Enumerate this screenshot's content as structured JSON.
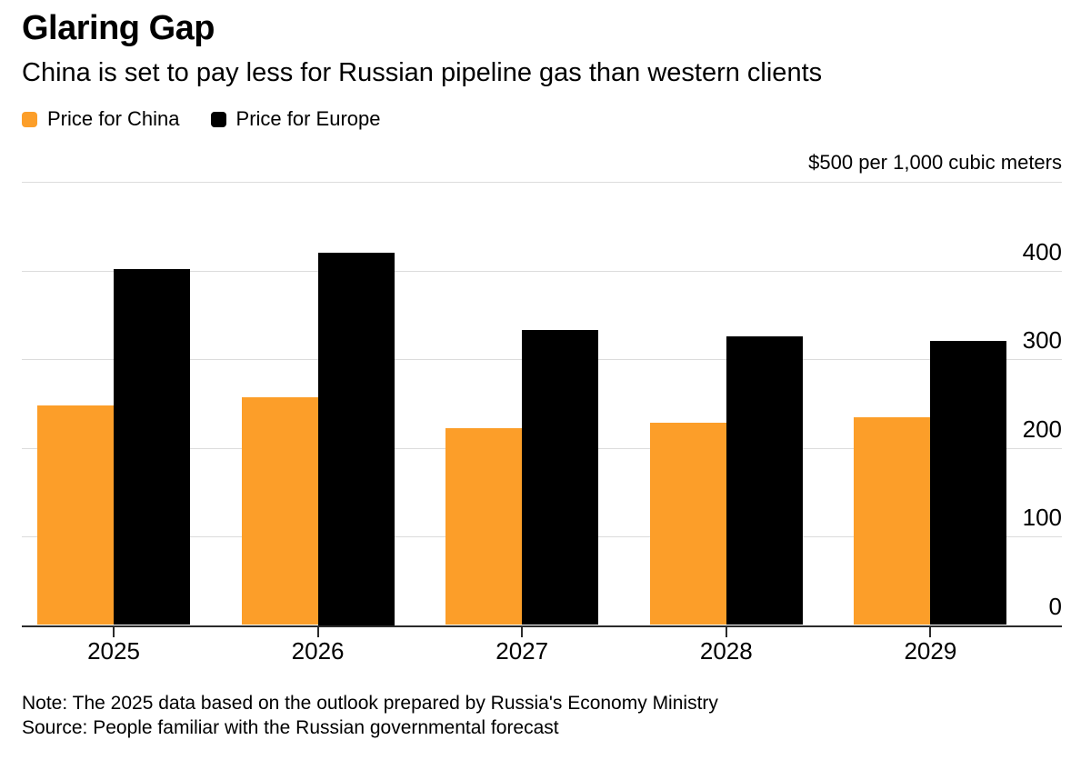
{
  "header": {
    "title": "Glaring Gap",
    "subtitle": "China is set to pay less for Russian pipeline gas than western clients"
  },
  "legend": [
    {
      "label": "Price for China",
      "color": "#FC9E29"
    },
    {
      "label": "Price for Europe",
      "color": "#000000"
    }
  ],
  "chart_data": {
    "type": "bar",
    "title": "Glaring Gap",
    "subtitle": "China is set to pay less for Russian pipeline gas than western clients",
    "unit_label": "$500 per 1,000 cubic meters",
    "categories": [
      "2025",
      "2026",
      "2027",
      "2028",
      "2029"
    ],
    "series": [
      {
        "name": "Price for China",
        "color": "#FC9E29",
        "values": [
          248,
          257,
          222,
          228,
          234
        ]
      },
      {
        "name": "Price for Europe",
        "color": "#000000",
        "values": [
          402,
          420,
          333,
          326,
          321
        ]
      }
    ],
    "ylim": [
      0,
      500
    ],
    "yticks": [
      0,
      100,
      200,
      300,
      400
    ],
    "gridline_values": [
      100,
      200,
      300,
      400,
      500
    ],
    "grid": true,
    "y_axis_side": "right",
    "legend_position": "top"
  },
  "footer": {
    "note": "Note: The 2025 data based on the outlook prepared by Russia's Economy Ministry",
    "source": "Source: People familiar with the Russian governmental forecast"
  },
  "colors": {
    "china_bar": "#FC9E29",
    "europe_bar": "#000000",
    "gridline": "#DCDCDC",
    "axis_line": "#2B2B2B",
    "text": "#000000"
  }
}
